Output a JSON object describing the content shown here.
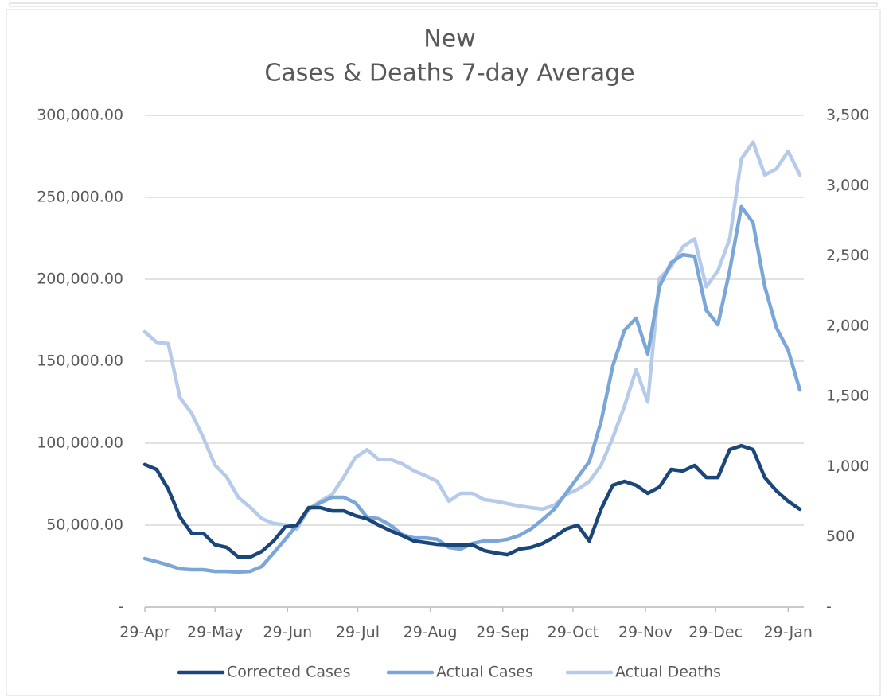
{
  "chart_data": {
    "type": "line",
    "title": [
      "New",
      "Cases & Deaths  7-day Average"
    ],
    "x": [
      "29-Apr",
      "4-May",
      "9-May",
      "14-May",
      "19-May",
      "24-May",
      "29-May",
      "3-Jun",
      "8-Jun",
      "13-Jun",
      "18-Jun",
      "23-Jun",
      "28-Jun",
      "3-Jul",
      "8-Jul",
      "13-Jul",
      "18-Jul",
      "23-Jul",
      "28-Jul",
      "2-Aug",
      "7-Aug",
      "12-Aug",
      "17-Aug",
      "22-Aug",
      "27-Aug",
      "1-Sep",
      "6-Sep",
      "11-Sep",
      "16-Sep",
      "21-Sep",
      "26-Sep",
      "1-Oct",
      "6-Oct",
      "11-Oct",
      "16-Oct",
      "21-Oct",
      "26-Oct",
      "31-Oct",
      "5-Nov",
      "10-Nov",
      "15-Nov",
      "20-Nov",
      "25-Nov",
      "30-Nov",
      "5-Dec",
      "10-Dec",
      "15-Dec",
      "20-Dec",
      "25-Dec",
      "30-Dec",
      "4-Jan",
      "9-Jan",
      "14-Jan",
      "19-Jan",
      "24-Jan",
      "29-Jan",
      "3-Feb"
    ],
    "xticks": [
      "29-Apr",
      "29-May",
      "29-Jun",
      "29-Jul",
      "29-Aug",
      "29-Sep",
      "29-Oct",
      "29-Nov",
      "29-Dec",
      "29-Jan"
    ],
    "series": [
      {
        "name": "Corrected Cases",
        "color": "#1b4679",
        "values": [
          87000,
          84000,
          72000,
          55000,
          45000,
          45000,
          38000,
          36400,
          30500,
          30500,
          34000,
          40300,
          49000,
          50000,
          60700,
          60700,
          58700,
          58700,
          55800,
          53900,
          50000,
          46600,
          43700,
          40300,
          39300,
          38300,
          37900,
          37900,
          37900,
          34500,
          33000,
          32000,
          35400,
          36400,
          38800,
          42700,
          47600,
          50000,
          40300,
          59700,
          74300,
          76700,
          74300,
          69400,
          73300,
          84000,
          83000,
          86400,
          79100,
          79100,
          96100,
          98500,
          96100,
          79100,
          70900,
          64600,
          59700
        ]
      },
      {
        "name": "Actual Cases",
        "color": "#7aa6d8",
        "values": [
          29600,
          27700,
          25700,
          23300,
          22800,
          22800,
          21800,
          21800,
          21400,
          21800,
          24800,
          33000,
          41300,
          50000,
          59700,
          63600,
          67000,
          67000,
          63600,
          54900,
          53900,
          50000,
          44200,
          42200,
          42200,
          41300,
          36400,
          35400,
          38800,
          40300,
          40300,
          41300,
          43700,
          47600,
          53400,
          59700,
          69400,
          79100,
          88800,
          113100,
          147100,
          168900,
          176200,
          154400,
          195600,
          210200,
          215000,
          214000,
          181100,
          172300,
          205300,
          244200,
          234500,
          195600,
          170400,
          156800,
          132500
        ]
      },
      {
        "name": "Actual Deaths",
        "color": "#b6cbea",
        "axis": "y2",
        "values": [
          1960,
          1885,
          1875,
          1490,
          1380,
          1205,
          1010,
          925,
          780,
          710,
          630,
          595,
          585,
          555,
          697,
          753,
          800,
          925,
          1065,
          1120,
          1050,
          1050,
          1020,
          970,
          935,
          895,
          753,
          810,
          810,
          765,
          753,
          736,
          720,
          708,
          697,
          725,
          800,
          838,
          895,
          1010,
          1205,
          1430,
          1690,
          1460,
          2340,
          2425,
          2565,
          2620,
          2280,
          2395,
          2620,
          3190,
          3310,
          3075,
          3120,
          3245,
          3075
        ]
      }
    ],
    "ylim": [
      0,
      300000
    ],
    "yticks": [
      {
        "value": 0,
        "label": "-"
      },
      {
        "value": 50000,
        "label": "50,000.00"
      },
      {
        "value": 100000,
        "label": "100,000.00"
      },
      {
        "value": 150000,
        "label": "150,000.00"
      },
      {
        "value": 200000,
        "label": "200,000.00"
      },
      {
        "value": 250000,
        "label": "250,000.00"
      },
      {
        "value": 300000,
        "label": "300,000.00"
      }
    ],
    "y2lim": [
      0,
      3500
    ],
    "y2ticks": [
      {
        "value": 0,
        "label": "-"
      },
      500,
      {
        "value": 1000,
        "label": "1,000"
      },
      {
        "value": 1500,
        "label": "1,500"
      },
      {
        "value": 2000,
        "label": "2,000"
      },
      {
        "value": 2500,
        "label": "2,500"
      },
      {
        "value": 3000,
        "label": "3,000"
      },
      {
        "value": 3500,
        "label": "3,500"
      }
    ],
    "grid": true,
    "legend": "bottom"
  }
}
